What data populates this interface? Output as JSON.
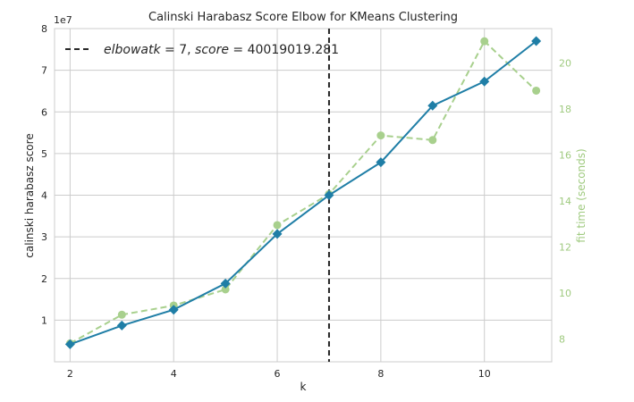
{
  "chart_data": {
    "type": "line",
    "title": "Calinski Harabasz Score Elbow for KMeans Clustering",
    "xlabel": "k",
    "ylabel": "calinski harabasz score",
    "ylabel_right": "fit time (seconds)",
    "y_offset_label": "1e7",
    "x": [
      2,
      3,
      4,
      5,
      6,
      7,
      8,
      9,
      10,
      11
    ],
    "xlim": [
      1.7,
      11.3
    ],
    "ylim": [
      0,
      8
    ],
    "ylim_right": [
      7,
      21.5
    ],
    "x_ticks": [
      "2",
      "4",
      "6",
      "8",
      "10"
    ],
    "y_ticks": [
      "1",
      "2",
      "3",
      "4",
      "5",
      "6",
      "7",
      "8"
    ],
    "y_ticks_right": [
      "8",
      "10",
      "12",
      "14",
      "16",
      "18",
      "20"
    ],
    "grid": true,
    "legend_position": "top-left",
    "series": [
      {
        "name": "",
        "axis": "left",
        "color": "#1f7ea6",
        "marker": "diamond",
        "values": [
          0.42,
          0.87,
          1.25,
          1.88,
          3.07,
          4.0,
          4.79,
          6.15,
          6.73,
          7.7
        ]
      },
      {
        "name": "",
        "axis": "right",
        "color": "#a8d08d",
        "marker": "circle",
        "style": "dashed",
        "values": [
          7.8,
          9.05,
          9.45,
          10.15,
          12.95,
          14.3,
          16.85,
          16.65,
          20.95,
          18.8
        ]
      }
    ],
    "elbow": {
      "k": 7,
      "label_math": "elbow at k = 7, score = 40019019.281",
      "color": "#262626"
    }
  }
}
